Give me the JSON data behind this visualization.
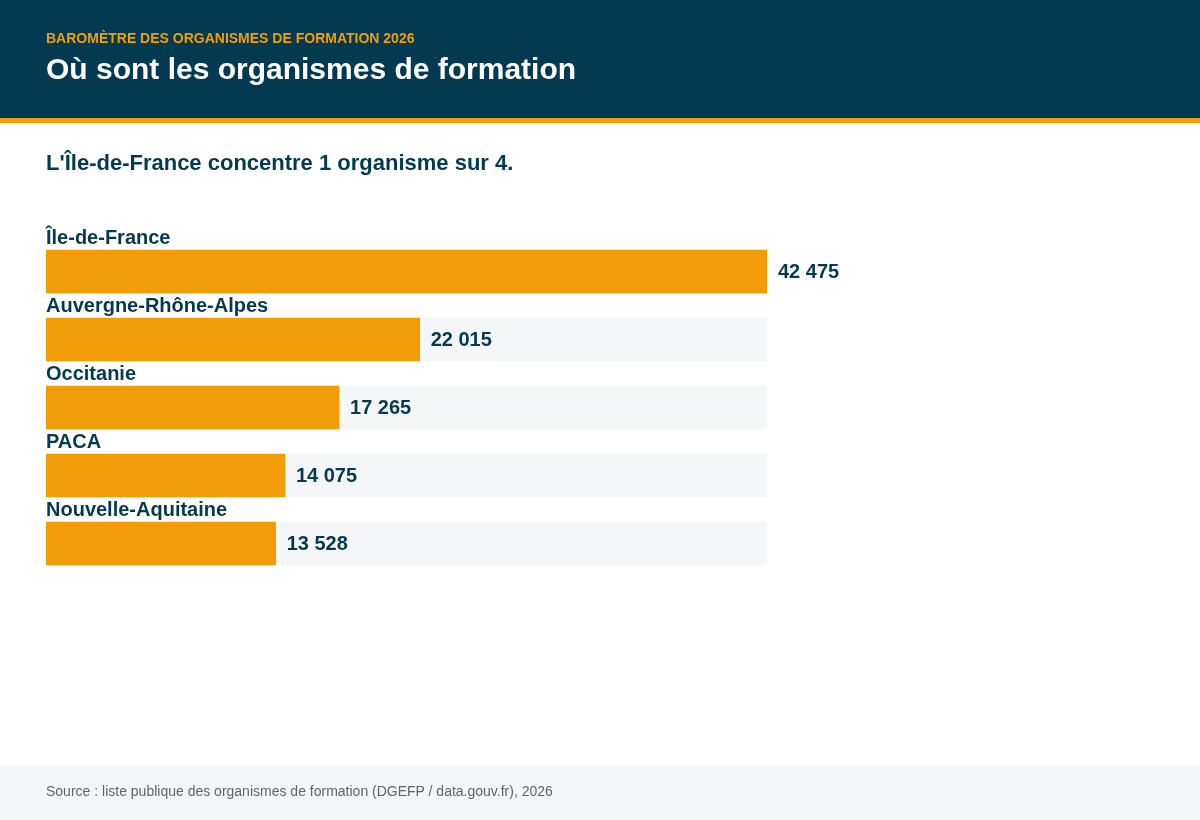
{
  "chart_data": {
    "type": "bar",
    "orientation": "horizontal",
    "title": "Où sont les organismes de formation",
    "subtitle": "L'Île-de-France concentre 1 organisme sur 4.",
    "categories": [
      "Île-de-France",
      "Auvergne-Rhône-Alpes",
      "Occitanie",
      "PACA",
      "Nouvelle-Aquitaine"
    ],
    "values": [
      42475,
      22015,
      17265,
      14075,
      13528
    ],
    "color": "#f39c0a",
    "value_labels": [
      "42 475",
      "22 015",
      "17 265",
      "14 075",
      "13 528"
    ],
    "tick_labels": "y",
    "annotations": [
      "BAROMÈTRE DES ORGANISMES DE FORMATION 2026",
      "Source : liste publique des organismes de formation (DGEFP / data.gouv.fr), 2026"
    ]
  }
}
